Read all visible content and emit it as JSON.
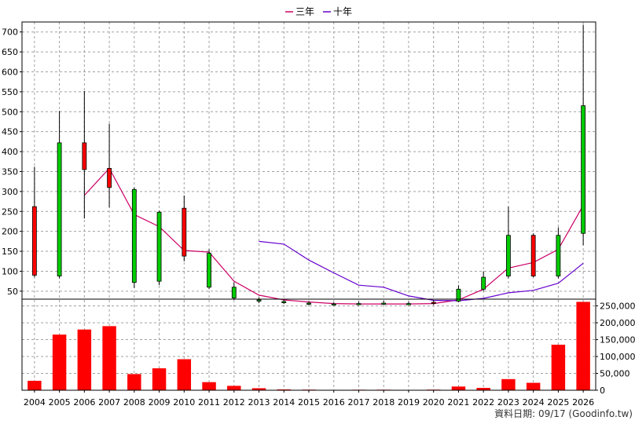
{
  "chart_data": {
    "type": "candlestick",
    "categories": [
      "2004",
      "2005",
      "2006",
      "2007",
      "2008",
      "2009",
      "2010",
      "2011",
      "2012",
      "2013",
      "2014",
      "2015",
      "2016",
      "2017",
      "2018",
      "2019",
      "2020",
      "2021",
      "2022",
      "2023",
      "2024",
      "2025",
      "2026"
    ],
    "candles": [
      {
        "open": 90,
        "close": 262,
        "high": 362,
        "low": 85
      },
      {
        "open": 422,
        "close": 88,
        "high": 502,
        "low": 82
      },
      {
        "open": 355,
        "close": 422,
        "high": 552,
        "low": 232
      },
      {
        "open": 310,
        "close": 358,
        "high": 470,
        "low": 260
      },
      {
        "open": 305,
        "close": 72,
        "high": 310,
        "low": 58
      },
      {
        "open": 248,
        "close": 75,
        "high": 252,
        "low": 65
      },
      {
        "open": 138,
        "close": 258,
        "high": 290,
        "low": 125
      },
      {
        "open": 145,
        "close": 60,
        "high": 155,
        "low": 55
      },
      {
        "open": 60,
        "close": 33,
        "high": 72,
        "low": 28
      },
      {
        "open": 28,
        "close": 26,
        "high": 34,
        "low": 20
      },
      {
        "open": 24,
        "close": 23,
        "high": 28,
        "low": 18
      },
      {
        "open": 20,
        "close": 19,
        "high": 24,
        "low": 15
      },
      {
        "open": 18,
        "close": 17,
        "high": 22,
        "low": 14
      },
      {
        "open": 19,
        "close": 18,
        "high": 24,
        "low": 15
      },
      {
        "open": 20,
        "close": 19,
        "high": 26,
        "low": 16
      },
      {
        "open": 19,
        "close": 18,
        "high": 24,
        "low": 15
      },
      {
        "open": 20,
        "close": 22,
        "high": 28,
        "low": 16
      },
      {
        "open": 55,
        "close": 25,
        "high": 65,
        "low": 22
      },
      {
        "open": 85,
        "close": 55,
        "high": 100,
        "low": 50
      },
      {
        "open": 190,
        "close": 88,
        "high": 262,
        "low": 82
      },
      {
        "open": 88,
        "close": 190,
        "high": 195,
        "low": 85
      },
      {
        "open": 190,
        "close": 88,
        "high": 210,
        "low": 82
      },
      {
        "open": 515,
        "close": 195,
        "high": 718,
        "low": 165
      }
    ],
    "series": [
      {
        "name": "三年",
        "color": "#cc0066",
        "values": [
          null,
          null,
          290,
          358,
          242,
          212,
          152,
          148,
          75,
          40,
          28,
          23,
          19,
          18,
          18,
          18,
          19,
          28,
          55,
          108,
          122,
          155,
          265
        ]
      },
      {
        "name": "十年",
        "color": "#6600cc",
        "values": [
          null,
          null,
          null,
          null,
          null,
          null,
          null,
          null,
          null,
          175,
          168,
          128,
          96,
          65,
          60,
          38,
          27,
          26,
          32,
          46,
          52,
          70,
          120
        ]
      }
    ],
    "volume": {
      "values": [
        28000,
        165000,
        180000,
        190000,
        48000,
        65000,
        92000,
        24000,
        13000,
        6000,
        2500,
        1800,
        1200,
        1500,
        1600,
        1000,
        1800,
        11000,
        7000,
        33000,
        22000,
        135000,
        262000
      ],
      "ylim": [
        0,
        270000
      ],
      "ticks": [
        "250,000",
        "200,000",
        "150,000",
        "100,000",
        "50,000",
        "0"
      ],
      "tick_values": [
        250000,
        200000,
        150000,
        100000,
        50000,
        0
      ],
      "color": "#ff0000"
    },
    "price_axis": {
      "ylim": [
        30,
        725
      ],
      "ticks": [
        "700",
        "650",
        "600",
        "550",
        "500",
        "450",
        "400",
        "350",
        "300",
        "250",
        "200",
        "150",
        "100",
        "50"
      ],
      "tick_values": [
        700,
        650,
        600,
        550,
        500,
        450,
        400,
        350,
        300,
        250,
        200,
        150,
        100,
        50
      ]
    },
    "colors": {
      "up": "#ff0000",
      "down": "#00cc00",
      "wick": "#000000",
      "grid": "#a0a0a0"
    },
    "grid": true,
    "legend_position": "top-center"
  },
  "legend": {
    "items": [
      {
        "label": "三年",
        "color": "#cc0066"
      },
      {
        "label": "十年",
        "color": "#6600cc"
      }
    ]
  },
  "footer": {
    "source_text": "資料日期: 09/17 (Goodinfo.tw)"
  }
}
